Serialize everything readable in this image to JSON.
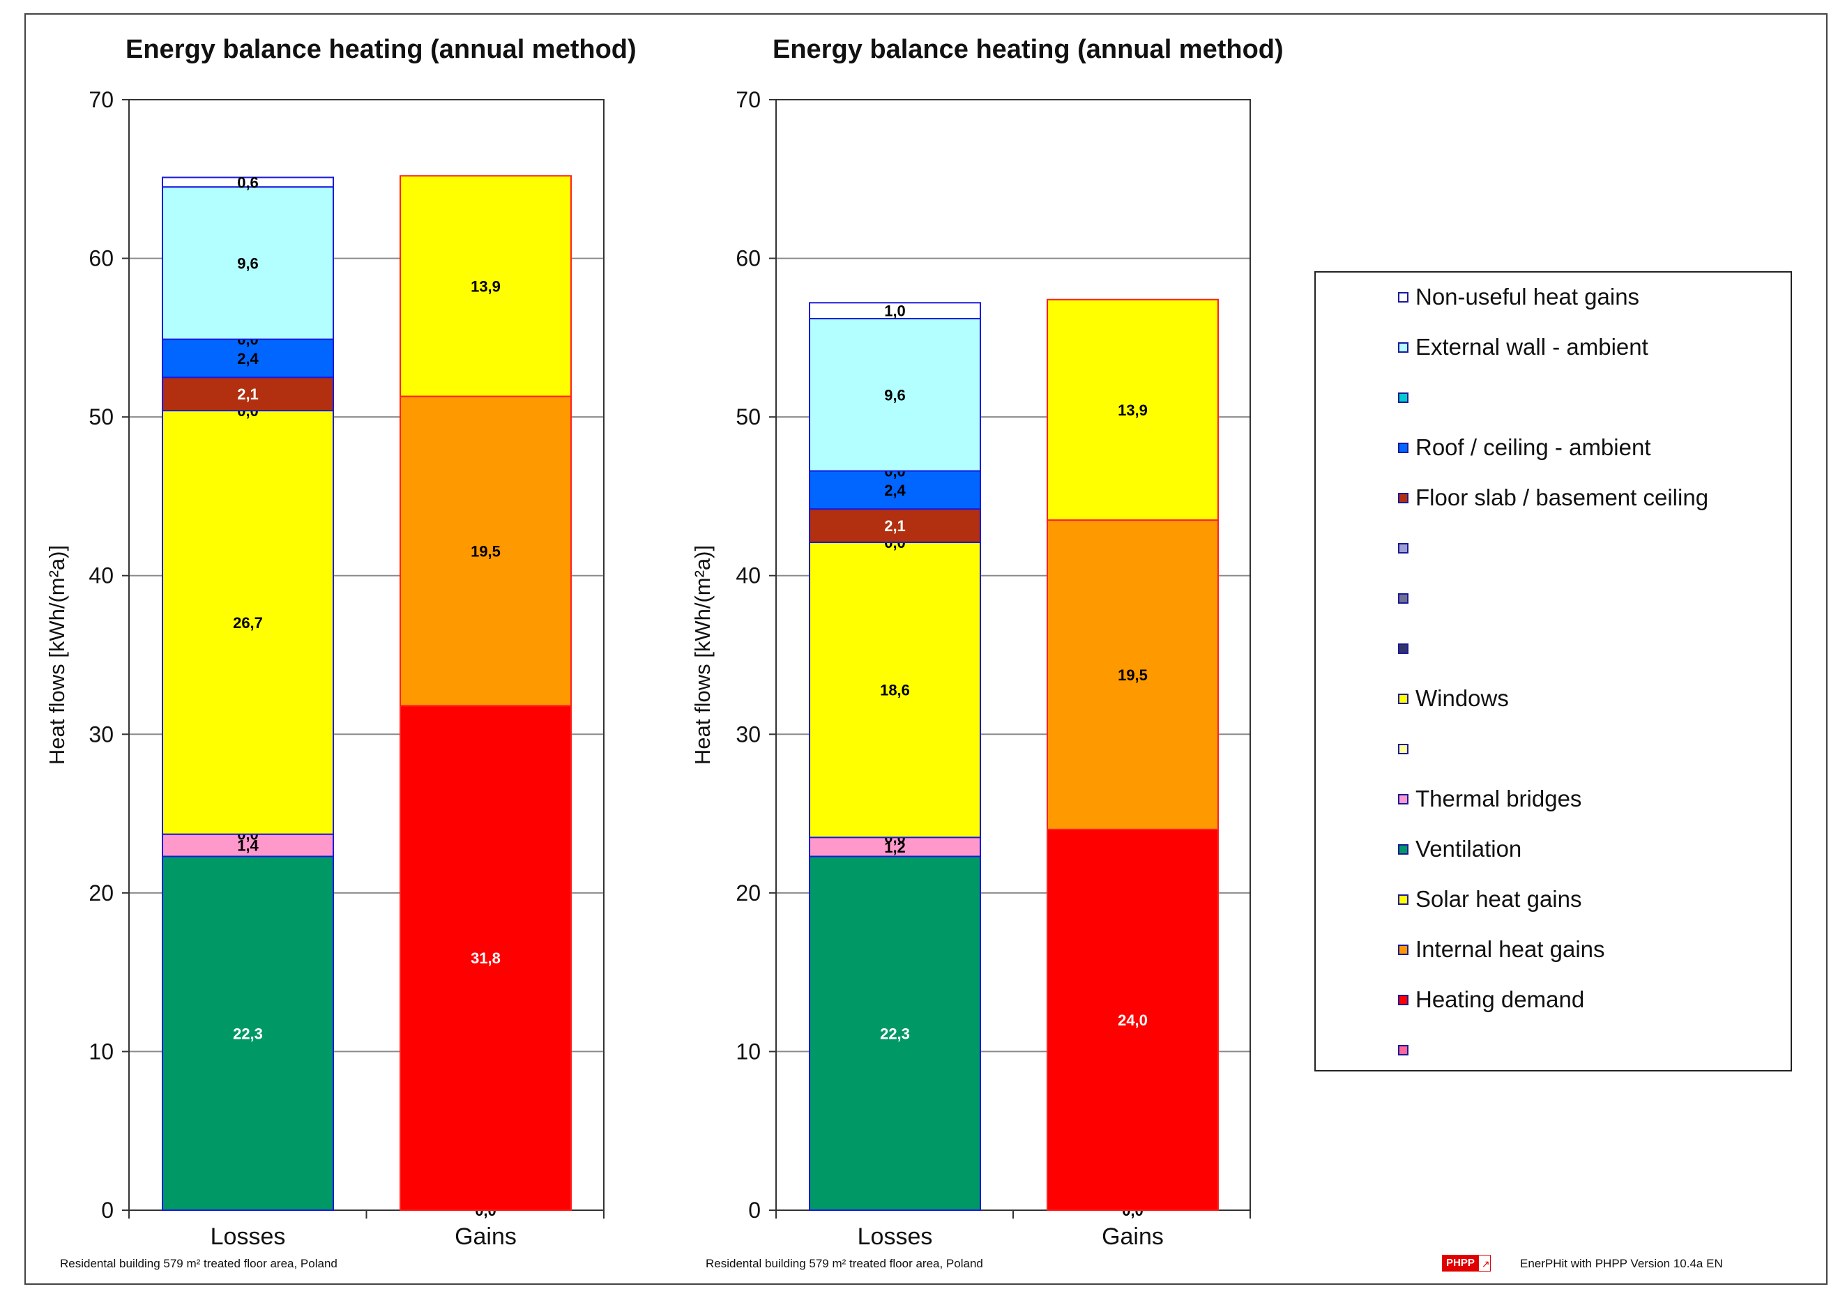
{
  "chart_data": [
    {
      "type": "bar",
      "stacked": true,
      "title": "Energy balance heating (annual method)",
      "ylabel": "Heat flows [kWh/(m²a)]",
      "ylim": [
        0,
        70
      ],
      "yticks": [
        0,
        10,
        20,
        30,
        40,
        50,
        60,
        70
      ],
      "grid": true,
      "categories": [
        "Losses",
        "Gains"
      ],
      "stacks": [
        [
          {
            "name": "Ventilation",
            "value": 22.3,
            "label": "22,3",
            "color": "#009966",
            "text_color": "#ffffff"
          },
          {
            "name": "Thermal bridges",
            "value": 1.4,
            "label": "1,4",
            "color": "#ff99cc",
            "text_color": "#000000"
          },
          {
            "name": "",
            "value": 0.0,
            "label": "0,0",
            "color": "#ffff99",
            "text_color": "#000000"
          },
          {
            "name": "Windows",
            "value": 26.7,
            "label": "26,7",
            "color": "#ffff00",
            "text_color": "#000000"
          },
          {
            "name": "",
            "value": 0.0,
            "label": "0,0",
            "color": "#333366",
            "text_color": "#000000"
          },
          {
            "name": "Floor slab / basement ceiling",
            "value": 2.1,
            "label": "2,1",
            "color": "#b23010",
            "text_color": "#ffffff"
          },
          {
            "name": "Roof / ceiling - ambient",
            "value": 2.4,
            "label": "2,4",
            "color": "#0066ff",
            "text_color": "#000000"
          },
          {
            "name": "",
            "value": 0.0,
            "label": "0,0",
            "color": "#00cccc",
            "text_color": "#000000"
          },
          {
            "name": "External wall - ambient",
            "value": 9.6,
            "label": "9,6",
            "color": "#b3ffff",
            "text_color": "#000000"
          },
          {
            "name": "Non-useful heat gains",
            "value": 0.6,
            "label": "0,6",
            "color": "#ffffff",
            "text_color": "#000000"
          }
        ],
        [
          {
            "name": "",
            "value": 0.0,
            "label": "0,0",
            "color": "#ff6699",
            "text_color": "#000000"
          },
          {
            "name": "Heating demand",
            "value": 31.8,
            "label": "31,8",
            "color": "#ff0000",
            "text_color": "#ffffff"
          },
          {
            "name": "Internal heat gains",
            "value": 19.5,
            "label": "19,5",
            "color": "#ff9900",
            "text_color": "#000000"
          },
          {
            "name": "Solar heat gains",
            "value": 13.9,
            "label": "13,9",
            "color": "#ffff00",
            "text_color": "#000000"
          }
        ]
      ],
      "footer": "Residental building     579 m² treated floor area, Poland"
    },
    {
      "type": "bar",
      "stacked": true,
      "title": "Energy balance heating (annual method)",
      "ylabel": "Heat flows [kWh/(m²a)]",
      "ylim": [
        0,
        70
      ],
      "yticks": [
        0,
        10,
        20,
        30,
        40,
        50,
        60,
        70
      ],
      "grid": true,
      "categories": [
        "Losses",
        "Gains"
      ],
      "stacks": [
        [
          {
            "name": "Ventilation",
            "value": 22.3,
            "label": "22,3",
            "color": "#009966",
            "text_color": "#ffffff"
          },
          {
            "name": "Thermal bridges",
            "value": 1.2,
            "label": "1,2",
            "color": "#ff99cc",
            "text_color": "#000000"
          },
          {
            "name": "",
            "value": 0.0,
            "label": "0,0",
            "color": "#ffff99",
            "text_color": "#000000"
          },
          {
            "name": "Windows",
            "value": 18.6,
            "label": "18,6",
            "color": "#ffff00",
            "text_color": "#000000"
          },
          {
            "name": "",
            "value": 0.0,
            "label": "0,0",
            "color": "#333366",
            "text_color": "#000000"
          },
          {
            "name": "Floor slab / basement ceiling",
            "value": 2.1,
            "label": "2,1",
            "color": "#b23010",
            "text_color": "#ffffff"
          },
          {
            "name": "Roof / ceiling - ambient",
            "value": 2.4,
            "label": "2,4",
            "color": "#0066ff",
            "text_color": "#000000"
          },
          {
            "name": "",
            "value": 0.0,
            "label": "0,0",
            "color": "#00cccc",
            "text_color": "#000000"
          },
          {
            "name": "External wall - ambient",
            "value": 9.6,
            "label": "9,6",
            "color": "#b3ffff",
            "text_color": "#000000"
          },
          {
            "name": "Non-useful heat gains",
            "value": 1.0,
            "label": "1,0",
            "color": "#ffffff",
            "text_color": "#000000"
          }
        ],
        [
          {
            "name": "",
            "value": 0.0,
            "label": "0,0",
            "color": "#ff6699",
            "text_color": "#000000"
          },
          {
            "name": "Heating demand",
            "value": 24.0,
            "label": "24,0",
            "color": "#ff0000",
            "text_color": "#ffffff"
          },
          {
            "name": "Internal heat gains",
            "value": 19.5,
            "label": "19,5",
            "color": "#ff9900",
            "text_color": "#000000"
          },
          {
            "name": "Solar heat gains",
            "value": 13.9,
            "label": "13,9",
            "color": "#ffff00",
            "text_color": "#000000"
          }
        ]
      ],
      "footer": "Residental building     579 m² treated floor area, Poland"
    }
  ],
  "legend": [
    {
      "label": "Non-useful heat gains",
      "color": "#ffffff"
    },
    {
      "label": "External wall - ambient",
      "color": "#b3ffff"
    },
    {
      "label": "",
      "color": "#00cccc"
    },
    {
      "label": "Roof / ceiling - ambient",
      "color": "#0066ff"
    },
    {
      "label": "Floor slab / basement ceiling",
      "color": "#b23010"
    },
    {
      "label": "",
      "color": "#a0a0d0"
    },
    {
      "label": "",
      "color": "#707090"
    },
    {
      "label": "",
      "color": "#333366"
    },
    {
      "label": "Windows",
      "color": "#ffff00"
    },
    {
      "label": "",
      "color": "#ffff99"
    },
    {
      "label": "Thermal bridges",
      "color": "#ff99cc"
    },
    {
      "label": "Ventilation",
      "color": "#009966"
    },
    {
      "label": "Solar heat gains",
      "color": "#ffff00"
    },
    {
      "label": "Internal heat gains",
      "color": "#ff9900"
    },
    {
      "label": "Heating demand",
      "color": "#ff0000"
    },
    {
      "label": "",
      "color": "#ff6699"
    }
  ],
  "footer_right": "EnerPHit with PHPP Version 10.4a EN",
  "logo_text": "PHPP"
}
